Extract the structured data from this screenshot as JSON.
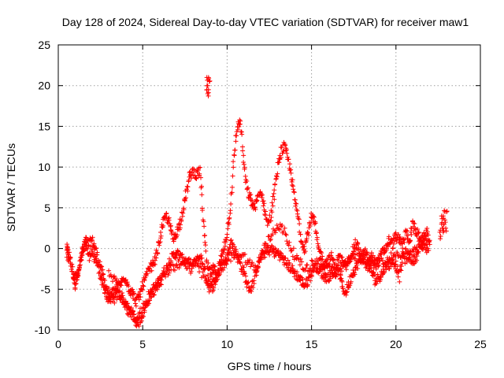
{
  "chart_data": {
    "type": "scatter",
    "title": "Day 128 of 2024, Sidereal Day-to-day VTEC variation (SDTVAR) for receiver maw1",
    "xlabel": "GPS time / hours",
    "ylabel": "SDTVAR / TECUs",
    "xlim": [
      0,
      25
    ],
    "ylim": [
      -10,
      25
    ],
    "xticks": [
      0,
      5,
      10,
      15,
      20,
      25
    ],
    "yticks": [
      -10,
      -5,
      0,
      5,
      10,
      15,
      20,
      25
    ],
    "grid": true,
    "marker": "+",
    "color": "#ff0000",
    "series": [
      {
        "name": "SDTVAR",
        "note": "dense point traces sampled along the visible envelope",
        "trace_a": [
          [
            0.5,
            0
          ],
          [
            0.6,
            -0.5
          ],
          [
            0.9,
            -3.5
          ],
          [
            1.0,
            -4.5
          ],
          [
            1.2,
            -2.5
          ],
          [
            1.4,
            -1
          ],
          [
            1.6,
            1
          ],
          [
            1.8,
            0.5
          ],
          [
            2.0,
            1
          ],
          [
            2.2,
            0
          ],
          [
            2.4,
            -1.5
          ],
          [
            2.6,
            -3
          ],
          [
            2.8,
            -4.5
          ],
          [
            3.0,
            -5.5
          ],
          [
            3.2,
            -6.5
          ],
          [
            3.4,
            -6
          ],
          [
            3.6,
            -5.5
          ],
          [
            3.8,
            -6
          ],
          [
            4.0,
            -7
          ],
          [
            4.2,
            -7.5
          ],
          [
            4.4,
            -8
          ],
          [
            4.6,
            -9
          ],
          [
            4.8,
            -9
          ],
          [
            5.0,
            -8
          ],
          [
            5.2,
            -7
          ],
          [
            5.4,
            -6
          ],
          [
            5.6,
            -5
          ],
          [
            5.8,
            -4.5
          ],
          [
            6.0,
            -4
          ],
          [
            6.2,
            -3
          ],
          [
            6.4,
            -2.5
          ],
          [
            6.6,
            -1.5
          ],
          [
            6.8,
            -1
          ],
          [
            7.0,
            -0.5
          ],
          [
            7.2,
            -1
          ],
          [
            7.4,
            -1.5
          ],
          [
            7.6,
            -2
          ],
          [
            7.8,
            -2.5
          ],
          [
            8.0,
            -2
          ],
          [
            8.2,
            -1.5
          ],
          [
            8.4,
            -1
          ],
          [
            8.6,
            -2
          ],
          [
            8.8,
            -4
          ],
          [
            9.0,
            -5
          ],
          [
            9.2,
            -4.5
          ],
          [
            9.4,
            -3.5
          ],
          [
            9.6,
            -2.5
          ],
          [
            9.8,
            -2
          ],
          [
            10.0,
            -1
          ],
          [
            10.2,
            1
          ],
          [
            10.4,
            0
          ],
          [
            10.6,
            -1
          ],
          [
            10.8,
            -2
          ],
          [
            11.0,
            -3
          ],
          [
            11.2,
            -4.5
          ],
          [
            11.4,
            -5
          ],
          [
            11.6,
            -4
          ],
          [
            11.8,
            -2
          ],
          [
            12.0,
            -1
          ],
          [
            12.2,
            -0.5
          ],
          [
            12.4,
            -0.5
          ],
          [
            12.6,
            0
          ],
          [
            12.8,
            -0.5
          ],
          [
            13.0,
            -0.5
          ],
          [
            13.2,
            -1
          ],
          [
            13.4,
            -1.5
          ],
          [
            13.6,
            -2
          ],
          [
            13.8,
            -2.5
          ],
          [
            14.0,
            -3
          ],
          [
            14.2,
            -3.5
          ],
          [
            14.4,
            -4
          ],
          [
            14.6,
            -4.5
          ],
          [
            14.8,
            -4
          ],
          [
            15.0,
            -3
          ],
          [
            15.2,
            -2
          ],
          [
            15.4,
            -2.5
          ],
          [
            15.6,
            -3
          ],
          [
            15.8,
            -3.5
          ],
          [
            16.0,
            -3.5
          ],
          [
            16.2,
            -3
          ],
          [
            16.4,
            -3
          ],
          [
            16.6,
            -2.5
          ],
          [
            16.8,
            -4.5
          ],
          [
            17.0,
            -5.5
          ],
          [
            17.2,
            -4.5
          ],
          [
            17.4,
            -3
          ],
          [
            17.6,
            -2.5
          ],
          [
            17.8,
            -1.5
          ],
          [
            18.0,
            -1
          ],
          [
            18.2,
            -1.5
          ],
          [
            18.4,
            -2
          ],
          [
            18.6,
            -3
          ],
          [
            18.8,
            -4
          ],
          [
            19.0,
            -3.5
          ],
          [
            19.2,
            -3
          ],
          [
            19.4,
            -2
          ],
          [
            19.6,
            -2
          ],
          [
            19.8,
            -1.5
          ],
          [
            20.0,
            -2
          ],
          [
            20.2,
            -3.5
          ],
          [
            20.4,
            -1
          ],
          [
            20.6,
            -0.5
          ],
          [
            20.8,
            -1
          ],
          [
            21.0,
            -1.5
          ],
          [
            21.2,
            -1
          ],
          [
            21.4,
            0
          ],
          [
            21.6,
            0.5
          ],
          [
            21.8,
            0
          ],
          [
            22.0,
            0.5
          ]
        ],
        "trace_b": [
          [
            0.5,
            -0.5
          ],
          [
            0.7,
            -1.5
          ],
          [
            1.0,
            -3.5
          ],
          [
            1.2,
            -3
          ],
          [
            1.4,
            -0.5
          ],
          [
            1.6,
            0.5
          ],
          [
            1.8,
            -1
          ],
          [
            2.0,
            -0.5
          ],
          [
            2.2,
            -1.5
          ],
          [
            2.4,
            -2.5
          ],
          [
            2.6,
            -4
          ],
          [
            2.8,
            -5.5
          ],
          [
            3.0,
            -6.5
          ],
          [
            3.2,
            -5.5
          ],
          [
            3.4,
            -5
          ],
          [
            3.6,
            -4.5
          ],
          [
            3.8,
            -4
          ],
          [
            4.0,
            -3.5
          ],
          [
            4.2,
            -5
          ],
          [
            4.4,
            -5.5
          ],
          [
            4.6,
            -6.5
          ],
          [
            4.8,
            -6
          ],
          [
            5.0,
            -4.5
          ],
          [
            5.2,
            -3.5
          ],
          [
            5.4,
            -2.5
          ],
          [
            5.6,
            -2
          ],
          [
            5.8,
            -1
          ],
          [
            6.0,
            1
          ],
          [
            6.2,
            3
          ],
          [
            6.4,
            4
          ],
          [
            6.6,
            3
          ],
          [
            6.8,
            1
          ],
          [
            7.0,
            2
          ],
          [
            7.2,
            3
          ],
          [
            7.4,
            5
          ],
          [
            7.6,
            7
          ],
          [
            7.8,
            9
          ],
          [
            8.0,
            9.5
          ],
          [
            8.2,
            9
          ],
          [
            8.4,
            9.5
          ],
          [
            8.6,
            3
          ],
          [
            8.8,
            -2
          ],
          [
            9.0,
            -3
          ],
          [
            9.2,
            -2.5
          ],
          [
            9.4,
            -3
          ],
          [
            9.6,
            -1.5
          ],
          [
            9.8,
            0
          ],
          [
            10.0,
            2
          ],
          [
            10.2,
            5
          ],
          [
            10.4,
            11
          ],
          [
            10.6,
            15
          ],
          [
            10.8,
            15.5
          ],
          [
            11.0,
            10
          ],
          [
            11.2,
            7
          ],
          [
            11.4,
            6
          ],
          [
            11.6,
            5
          ],
          [
            11.8,
            6
          ],
          [
            12.0,
            7
          ],
          [
            12.2,
            5
          ],
          [
            12.4,
            3
          ],
          [
            12.6,
            4
          ],
          [
            12.8,
            7
          ],
          [
            13.0,
            10
          ],
          [
            13.2,
            12
          ],
          [
            13.4,
            12.5
          ],
          [
            13.6,
            11
          ],
          [
            13.8,
            9
          ],
          [
            14.0,
            6
          ],
          [
            14.2,
            4
          ],
          [
            14.4,
            1
          ],
          [
            14.6,
            0
          ],
          [
            14.8,
            2
          ],
          [
            15.0,
            4
          ],
          [
            15.2,
            3
          ],
          [
            15.4,
            0
          ],
          [
            15.6,
            -1
          ],
          [
            15.8,
            -2
          ],
          [
            16.0,
            -1.5
          ],
          [
            16.2,
            -1
          ],
          [
            16.4,
            -2.5
          ],
          [
            16.6,
            -1
          ],
          [
            16.8,
            -1.5
          ],
          [
            17.0,
            -2.5
          ],
          [
            17.2,
            -1.5
          ],
          [
            17.4,
            -0.5
          ],
          [
            17.6,
            0.5
          ],
          [
            17.8,
            0
          ],
          [
            18.0,
            -1
          ],
          [
            18.2,
            -0.5
          ],
          [
            18.4,
            -1.5
          ],
          [
            18.6,
            -1
          ],
          [
            18.8,
            -2
          ],
          [
            19.0,
            -1.5
          ],
          [
            19.2,
            -0.5
          ],
          [
            19.4,
            0
          ],
          [
            19.6,
            1
          ],
          [
            19.8,
            0.5
          ],
          [
            20.0,
            1.5
          ],
          [
            20.2,
            1
          ],
          [
            20.4,
            0.5
          ],
          [
            20.6,
            2
          ],
          [
            20.8,
            1
          ],
          [
            21.0,
            3
          ],
          [
            21.2,
            2
          ],
          [
            21.4,
            1.5
          ],
          [
            21.6,
            1
          ],
          [
            21.8,
            2
          ],
          [
            22.0,
            1
          ]
        ],
        "trace_c": [
          [
            3.0,
            -3
          ],
          [
            3.4,
            -4
          ],
          [
            3.8,
            -6.5
          ],
          [
            4.2,
            -8
          ],
          [
            4.6,
            -8.5
          ],
          [
            5.0,
            -7.5
          ],
          [
            5.4,
            -5.5
          ],
          [
            5.8,
            -5
          ],
          [
            6.2,
            -3.5
          ],
          [
            6.6,
            -2.5
          ],
          [
            7.0,
            -2
          ],
          [
            7.4,
            -1.5
          ],
          [
            7.8,
            -1.5
          ],
          [
            8.2,
            -2
          ],
          [
            8.6,
            -3.5
          ],
          [
            9.0,
            -4
          ],
          [
            9.4,
            -3
          ],
          [
            9.8,
            -2
          ],
          [
            10.2,
            -1
          ],
          [
            10.6,
            -0.5
          ],
          [
            11.0,
            -1
          ],
          [
            11.4,
            -2
          ],
          [
            11.8,
            -2.5
          ],
          [
            12.2,
            0
          ],
          [
            12.6,
            1.5
          ],
          [
            13.0,
            3
          ],
          [
            13.4,
            2
          ],
          [
            13.8,
            0
          ],
          [
            14.2,
            -1.5
          ],
          [
            14.6,
            -2.5
          ],
          [
            15.0,
            -2
          ],
          [
            15.4,
            -1.5
          ],
          [
            15.8,
            -2
          ],
          [
            16.2,
            -2.5
          ],
          [
            16.6,
            -3
          ],
          [
            17.0,
            -2
          ],
          [
            17.4,
            -1
          ],
          [
            17.8,
            -1
          ],
          [
            18.2,
            -2.5
          ],
          [
            18.6,
            -2
          ],
          [
            19.0,
            -1
          ],
          [
            19.4,
            -1.5
          ],
          [
            19.8,
            -1
          ],
          [
            20.2,
            -0.5
          ],
          [
            20.6,
            -1.5
          ],
          [
            21.0,
            0
          ],
          [
            21.4,
            0.5
          ],
          [
            21.8,
            1
          ]
        ],
        "trace_d": [
          [
            22.6,
            2
          ],
          [
            22.7,
            3
          ],
          [
            22.8,
            4
          ],
          [
            22.9,
            3.5
          ],
          [
            23.0,
            4.5
          ],
          [
            22.65,
            1.5
          ],
          [
            22.75,
            2.5
          ],
          [
            22.85,
            3
          ],
          [
            22.95,
            2.5
          ],
          [
            22.7,
            4
          ],
          [
            22.8,
            2
          ],
          [
            22.9,
            4.5
          ]
        ],
        "trace_e": [
          [
            8.8,
            19.5
          ],
          [
            8.85,
            20
          ],
          [
            8.9,
            21
          ],
          [
            8.95,
            20.5
          ],
          [
            8.8,
            21
          ],
          [
            8.9,
            19.5
          ],
          [
            8.85,
            19
          ]
        ]
      }
    ]
  }
}
